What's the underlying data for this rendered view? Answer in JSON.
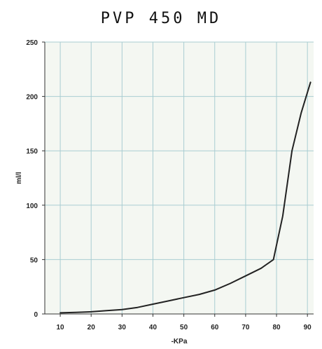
{
  "chart_data": {
    "type": "line",
    "title": "PVP 450 MD",
    "xlabel": "-KPa",
    "ylabel": "ml/l",
    "x_ticks": [
      "10",
      "20",
      "30",
      "40",
      "50",
      "60",
      "70",
      "80",
      "90"
    ],
    "y_ticks": [
      "0",
      "50",
      "100",
      "150",
      "200",
      "250"
    ],
    "xlim": [
      5,
      92
    ],
    "ylim": [
      0,
      250
    ],
    "grid": true,
    "colors": {
      "line": "#222222",
      "grid": "#a9cdd2",
      "background": "#f4f7f2"
    },
    "series": [
      {
        "x": [
          10,
          15,
          20,
          25,
          30,
          35,
          40,
          45,
          50,
          55,
          60,
          65,
          70,
          75,
          79,
          82,
          85,
          88,
          91
        ],
        "y": [
          1,
          1.5,
          2,
          3,
          4,
          6,
          9,
          12,
          15,
          18,
          22,
          28,
          35,
          42,
          50,
          90,
          150,
          185,
          213
        ]
      }
    ]
  }
}
